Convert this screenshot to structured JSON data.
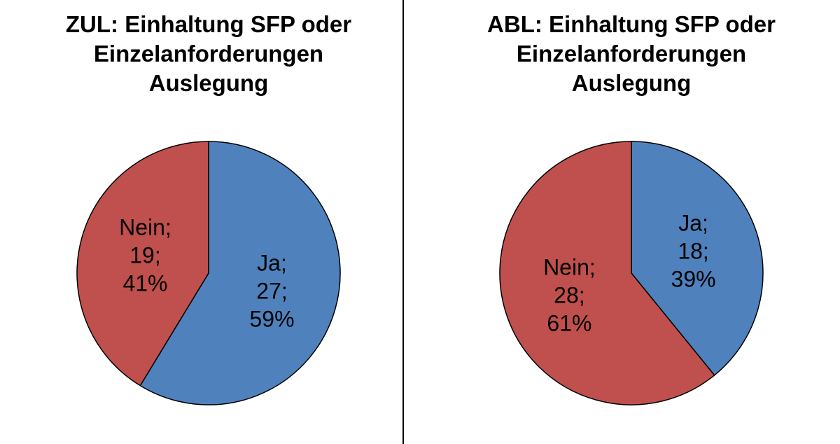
{
  "chart_data": [
    {
      "type": "pie",
      "title": [
        "ZUL: Einhaltung SFP oder",
        "Einzelanforderungen",
        "Auslegung"
      ],
      "slices": [
        {
          "name": "Ja",
          "value": 27,
          "percent": "59%",
          "color": "#4F81BD",
          "label": [
            "Ja;",
            "27;",
            "59%"
          ]
        },
        {
          "name": "Nein",
          "value": 19,
          "percent": "41%",
          "color": "#C0504D",
          "label": [
            "Nein;",
            "19;",
            "41%"
          ]
        }
      ],
      "start_angle": "12 o'clock",
      "direction": "clockwise"
    },
    {
      "type": "pie",
      "title": [
        "ABL: Einhaltung SFP oder",
        "Einzelanforderungen",
        "Auslegung"
      ],
      "slices": [
        {
          "name": "Ja",
          "value": 18,
          "percent": "39%",
          "color": "#4F81BD",
          "label": [
            "Ja;",
            "18;",
            "39%"
          ]
        },
        {
          "name": "Nein",
          "value": 28,
          "percent": "61%",
          "color": "#C0504D",
          "label": [
            "Nein;",
            "28;",
            "61%"
          ]
        }
      ],
      "start_angle": "12 o'clock",
      "direction": "clockwise"
    }
  ]
}
